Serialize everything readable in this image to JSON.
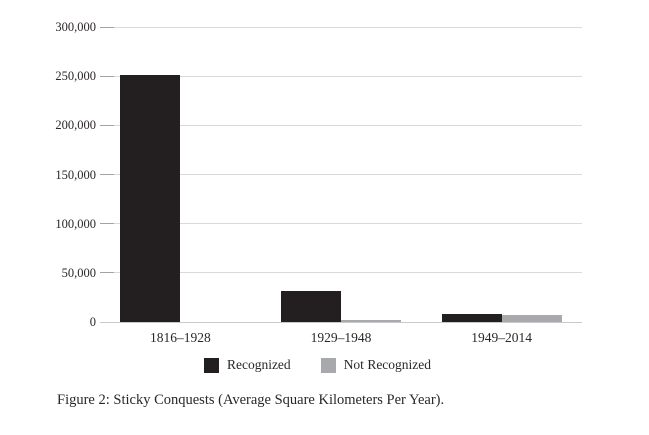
{
  "figure": {
    "caption": "Figure 2: Sticky Conquests (Average Square Kilometers Per Year)."
  },
  "colors": {
    "recognized": "#231f20",
    "not_recognized": "#a7a9ac",
    "gridline": "#d9d9d9",
    "tick": "#a3a3a3",
    "axis_line": "#c9cacc",
    "text": "#2b2627",
    "background": "#ffffff"
  },
  "chart_data": {
    "type": "bar",
    "title": "",
    "xlabel": "",
    "ylabel": "",
    "categories": [
      "1816–1928",
      "1929–1948",
      "1949–2014"
    ],
    "series": [
      {
        "name": "Recognized",
        "color": "#231f20",
        "values": [
          251000,
          32000,
          8000
        ]
      },
      {
        "name": "Not Recognized",
        "color": "#a7a9ac",
        "values": [
          0,
          2500,
          7500
        ]
      }
    ],
    "ylim": [
      0,
      300000
    ],
    "ytick_interval": 50000,
    "ytick_labels": [
      "0",
      "50,000",
      "100,000",
      "150,000",
      "200,000",
      "250,000",
      "300,000"
    ],
    "grid": true,
    "legend_position": "bottom",
    "caption": "Figure 2: Sticky Conquests (Average Square Kilometers Per Year)."
  }
}
